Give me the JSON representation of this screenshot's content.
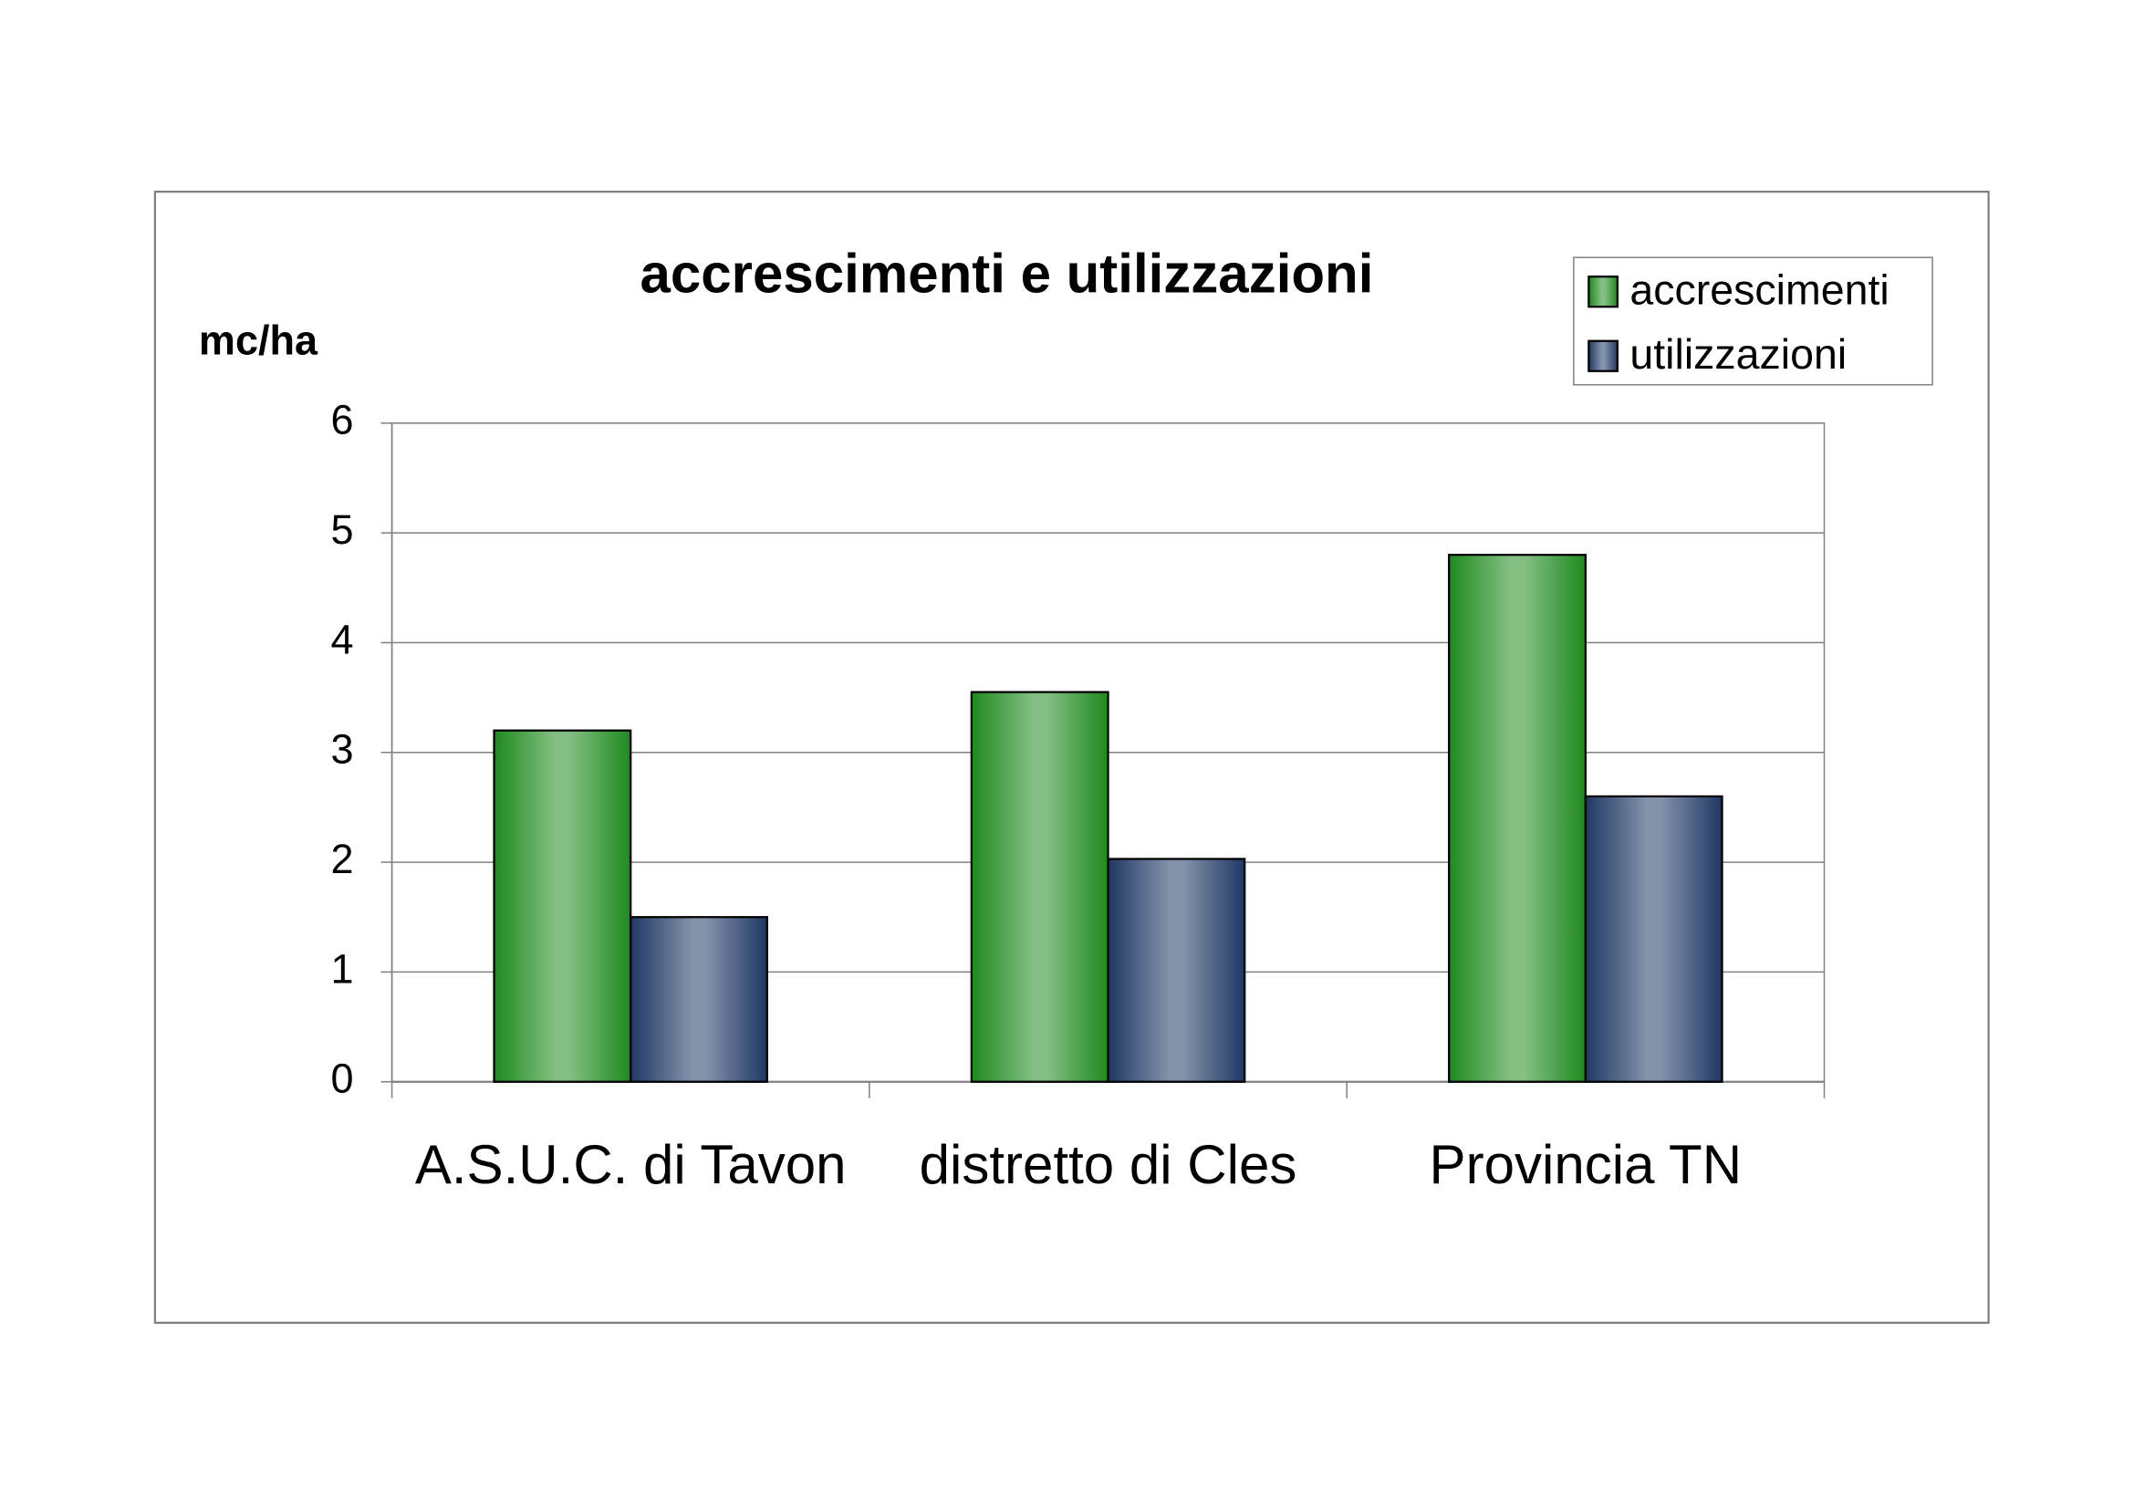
{
  "chart_data": {
    "type": "bar",
    "title": "accrescimenti e utilizzazioni",
    "y_label": "mc/ha",
    "categories": [
      "A.S.U.C. di Tavon",
      "distretto di Cles",
      "Provincia TN"
    ],
    "series": [
      {
        "name": "accrescimenti",
        "color": "#1e8a1e",
        "values": [
          3.2,
          3.55,
          4.8
        ]
      },
      {
        "name": "utilizzazioni",
        "color": "#1f3864",
        "values": [
          1.5,
          2.03,
          2.6
        ]
      }
    ],
    "ylim": [
      0,
      6
    ],
    "yticks": [
      0,
      1,
      2,
      3,
      4,
      5,
      6
    ],
    "grid": true,
    "legend": "top-right"
  }
}
